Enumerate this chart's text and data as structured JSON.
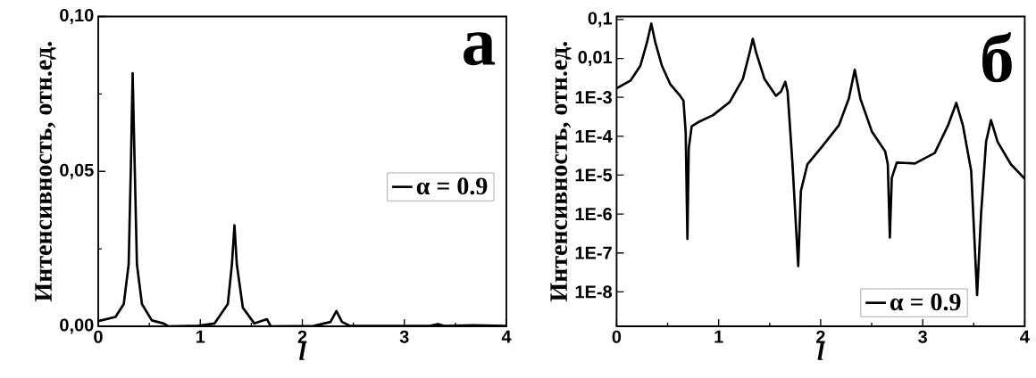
{
  "chart_data": [
    {
      "type": "line",
      "xlabel": "l",
      "ylabel": "Интенсивность, отн.ед.",
      "annotations": [
        "а"
      ],
      "x": [
        0,
        0.169,
        0.25,
        0.298,
        0.32,
        0.337,
        0.357,
        0.379,
        0.428,
        0.525,
        0.64,
        0.687,
        0.98,
        1.14,
        1.27,
        1.31,
        1.335,
        1.358,
        1.417,
        1.53,
        1.653,
        1.69,
        2.11,
        2.276,
        2.334,
        2.389,
        2.47,
        3.25,
        3.329,
        3.39,
        3.669,
        4
      ],
      "series": [
        {
          "name": "α = 0.9",
          "color": "#000000",
          "values": [
            0.0017,
            0.003,
            0.0072,
            0.02,
            0.052,
            0.0817,
            0.052,
            0.02,
            0.0072,
            0.0019,
            0.0009,
            0,
            0.0002,
            0.0009,
            0.0072,
            0.02,
            0.0326,
            0.02,
            0.006,
            0.0009,
            0.0023,
            0,
            0.0001,
            0.0014,
            0.0049,
            0.0014,
            0.0001,
            0.0001,
            0.0007,
            0.0001,
            0.0003,
            0.0001
          ]
        }
      ],
      "xlim": [
        0,
        4
      ],
      "ylim": [
        0,
        0.1
      ],
      "xticks": [
        0,
        1,
        2,
        3,
        4
      ],
      "yticks": [
        {
          "value": 0,
          "label": "0,00"
        },
        {
          "value": 0.05,
          "label": "0,05"
        },
        {
          "value": 0.1,
          "label": "0,10"
        }
      ],
      "legend": "right",
      "grid": false
    },
    {
      "type": "line",
      "xlabel": "l",
      "ylabel": "Интенсивность, отн.ед.",
      "annotations": [
        "б"
      ],
      "log": "y",
      "x": [
        0,
        0.136,
        0.233,
        0.298,
        0.34,
        0.379,
        0.444,
        0.525,
        0.622,
        0.655,
        0.677,
        0.694,
        0.707,
        0.736,
        0.8,
        0.946,
        1.109,
        1.238,
        1.303,
        1.335,
        1.368,
        1.449,
        1.562,
        1.611,
        1.653,
        1.676,
        1.724,
        1.78,
        1.806,
        1.87,
        2.016,
        2.178,
        2.276,
        2.334,
        2.389,
        2.503,
        2.632,
        2.658,
        2.678,
        2.697,
        2.746,
        2.924,
        3.118,
        3.248,
        3.329,
        3.394,
        3.475,
        3.533,
        3.572,
        3.621,
        3.669,
        3.734,
        3.864,
        4
      ],
      "series": [
        {
          "name": "α = 0.9",
          "color": "#000000",
          "values": [
            0.0017,
            0.0027,
            0.0065,
            0.026,
            0.079,
            0.026,
            0.0065,
            0.0022,
            0.0011,
            0.00083,
            0.00013,
            2.3e-07,
            4.9e-05,
            0.00018,
            0.00023,
            0.00035,
            0.00076,
            0.003,
            0.014,
            0.032,
            0.014,
            0.003,
            0.0011,
            0.0014,
            0.0025,
            0.0014,
            1.9e-05,
            4.6e-08,
            3.9e-06,
            1.9e-05,
            5.5e-05,
            0.00019,
            0.00093,
            0.0051,
            0.00093,
            0.00013,
            4.1e-05,
            1.9e-05,
            2.5e-07,
            8.5e-06,
            2.1e-05,
            2e-05,
            3.7e-05,
            0.00019,
            0.00072,
            0.00019,
            1.3e-05,
            8.3e-09,
            1e-06,
            7.2e-05,
            0.00026,
            7.2e-05,
            1.9e-05,
            8.1e-06
          ]
        }
      ],
      "xlim": [
        0,
        4
      ],
      "ylim": [
        1.3e-09,
        0.12
      ],
      "xticks": [
        0,
        1,
        2,
        3,
        4
      ],
      "yticks": [
        {
          "value": 0.1,
          "label": "0,1"
        },
        {
          "value": 0.01,
          "label": "0,01"
        },
        {
          "value": 0.001,
          "label": "1E-3"
        },
        {
          "value": 0.0001,
          "label": "1E-4"
        },
        {
          "value": 1e-05,
          "label": "1E-5"
        },
        {
          "value": 1e-06,
          "label": "1E-6"
        },
        {
          "value": 1e-07,
          "label": "1E-7"
        },
        {
          "value": 1e-08,
          "label": "1E-8"
        }
      ],
      "legend": "bottom right",
      "grid": false
    }
  ]
}
